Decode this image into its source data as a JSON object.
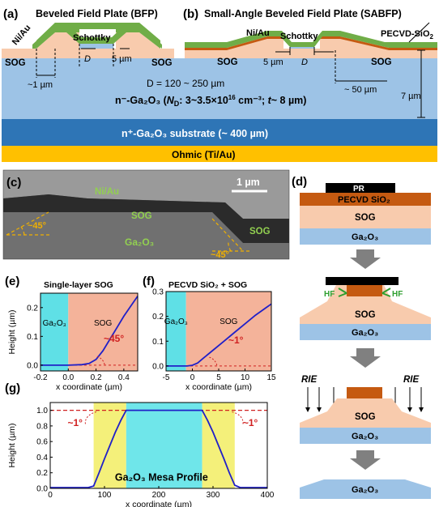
{
  "panel_a": {
    "letter": "(a)",
    "title": "Beveled Field Plate (BFP)",
    "metal": "Ni/Au",
    "schottky": "Schottky",
    "sog_left": "SOG",
    "sog_right": "SOG",
    "dim_D": "D",
    "dim_5um": "5 µm",
    "dim_1um": "~1 µm"
  },
  "panel_b": {
    "letter": "(b)",
    "title": "Small-Angle Beveled Field Plate (SABFP)",
    "metal": "Ni/Au",
    "schottky": "Schottky",
    "pecvd": "PECVD-SiO",
    "pecvd_sub": "2",
    "sog_left": "SOG",
    "sog_right": "SOG",
    "dim_5um": "5 µm",
    "dim_D": "D",
    "dim_50um": "~ 50 µm",
    "dim_7um": "7 µm"
  },
  "layers": {
    "d_range": "D = 120 ~ 250 µm",
    "n_minus": "n⁻-Ga₂O₃ (",
    "nd_sym": "N",
    "nd_sub": "D",
    "nd_val": ": 3~3.5×10",
    "nd_exp": "16",
    "nd_unit": " cm⁻³; ",
    "t_sym": "t",
    "t_val": "~ 8 µm)",
    "substrate": "n⁺-Ga₂O₃ substrate (~ 400 µm)",
    "ohmic": "Ohmic (Ti/Au)"
  },
  "panel_c": {
    "letter": "(c)",
    "scale": "1 µm",
    "metal": "Ni/Au",
    "sog_mid": "SOG",
    "sog_right": "SOG",
    "ga2o3": "Ga₂O₃",
    "angle_left": "~45°",
    "angle_right": "~45°"
  },
  "panel_d": {
    "letter": "(d)",
    "pr": "PR",
    "pecvd": "PECVD SiO₂",
    "sog": "SOG",
    "ga2o3": "Ga₂O₃",
    "hf_left": "HF",
    "hf_right": "HF",
    "sog2": "SOG",
    "ga2o3_2": "Ga₂O₃",
    "rie_left": "RIE",
    "rie_right": "RIE",
    "sog3": "SOG",
    "ga2o3_3": "Ga₂O₃",
    "ga2o3_4": "Ga₂O₃"
  },
  "chart_data": [
    {
      "panel": "(e)",
      "type": "line",
      "title": "Single-layer SOG",
      "xlabel": "x coordinate (µm)",
      "ylabel": "Height (µm)",
      "xlim": [
        -0.2,
        0.5
      ],
      "ylim": [
        -0.02,
        0.25
      ],
      "xticks": [
        "-0.2",
        "0.0",
        "0.2",
        "0.4"
      ],
      "yticks": [
        "0.0",
        "0.1",
        "0.2"
      ],
      "regions": [
        {
          "label": "Ga₂O₃",
          "x0": -0.2,
          "x1": 0.0,
          "color": "#5fe0e6"
        },
        {
          "label": "SOG",
          "x0": 0.0,
          "x1": 0.5,
          "color": "#f4b39a"
        }
      ],
      "annotation": "~45°",
      "series": [
        {
          "color": "#2020c8",
          "x": [
            -0.2,
            -0.1,
            0.0,
            0.1,
            0.15,
            0.2,
            0.25,
            0.3,
            0.35,
            0.4,
            0.45,
            0.5
          ],
          "y": [
            0.0,
            0.0,
            0.0,
            0.002,
            0.006,
            0.02,
            0.05,
            0.09,
            0.13,
            0.17,
            0.205,
            0.24
          ]
        }
      ]
    },
    {
      "panel": "(f)",
      "type": "line",
      "title": "PECVD SiO₂ + SOG",
      "xlabel": "x coordinate (µm)",
      "ylabel": "",
      "xlim": [
        -5,
        15
      ],
      "ylim": [
        -0.02,
        0.3
      ],
      "xticks": [
        "-5",
        "0",
        "5",
        "10",
        "15"
      ],
      "yticks": [
        "0.0",
        "0.1",
        "0.2",
        "0.3"
      ],
      "regions": [
        {
          "label": "Ga₂O₃",
          "x0": -5,
          "x1": -1.2,
          "color": "#5fe0e6"
        },
        {
          "label": "SOG",
          "x0": -1.2,
          "x1": 15,
          "color": "#f4b39a"
        }
      ],
      "annotation": "~1°",
      "series": [
        {
          "color": "#2020c8",
          "x": [
            -5,
            -2,
            -1,
            0,
            1,
            2,
            4,
            6,
            8,
            10,
            12,
            14,
            15
          ],
          "y": [
            0.0,
            0.0,
            0.0,
            0.003,
            0.012,
            0.03,
            0.065,
            0.1,
            0.135,
            0.17,
            0.205,
            0.235,
            0.25
          ]
        }
      ]
    },
    {
      "panel": "(g)",
      "type": "line",
      "title": "Ga₂O₃ Mesa Profile",
      "xlabel": "x coordinate (µm)",
      "ylabel": "Height (µm)",
      "xlim": [
        0,
        400
      ],
      "ylim": [
        0,
        1.1
      ],
      "xticks": [
        "0",
        "100",
        "200",
        "300",
        "400"
      ],
      "yticks": [
        "0.0",
        "0.2",
        "0.4",
        "0.6",
        "0.8",
        "1.0"
      ],
      "regions": [
        {
          "label": "",
          "x0": 80,
          "x1": 140,
          "color": "#f4f07a"
        },
        {
          "label": "",
          "x0": 140,
          "x1": 280,
          "color": "#6fe6ea"
        },
        {
          "label": "",
          "x0": 280,
          "x1": 340,
          "color": "#f4f07a"
        }
      ],
      "reference_line": 1.0,
      "annotation_left": "~1°",
      "annotation_right": "~1°",
      "series": [
        {
          "color": "#2020c8",
          "x": [
            0,
            40,
            70,
            80,
            90,
            100,
            110,
            120,
            130,
            140,
            200,
            280,
            290,
            300,
            310,
            320,
            330,
            340,
            350,
            360,
            400
          ],
          "y": [
            0.01,
            0.01,
            0.01,
            0.03,
            0.2,
            0.38,
            0.55,
            0.72,
            0.87,
            1.0,
            1.0,
            1.0,
            0.87,
            0.72,
            0.55,
            0.38,
            0.2,
            0.04,
            0.01,
            0.01,
            0.01
          ]
        }
      ]
    }
  ]
}
